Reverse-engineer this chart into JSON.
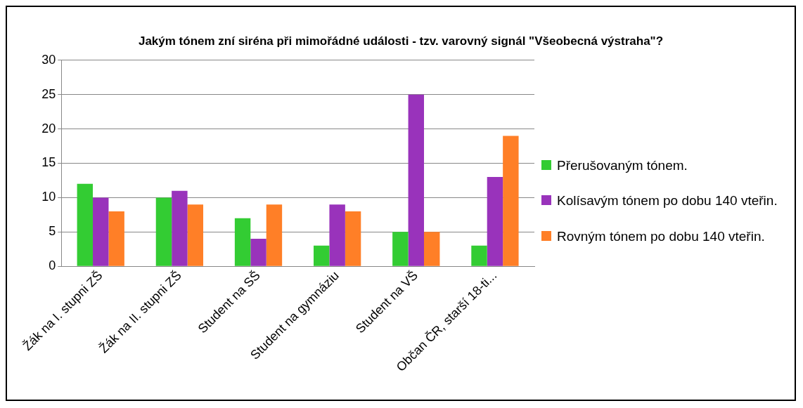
{
  "chart_data": {
    "type": "bar",
    "title": "Jakým tónem zní siréna při mimořádné události - tzv. varovný signál \"Všeobecná výstraha\"?",
    "categories": [
      "Žák na I. stupni ZŠ",
      "Žák na II. stupni ZŠ",
      "Student na SŠ",
      "Student na gymnáziu",
      "Student na VŠ",
      "Občan ČR, starší 18-ti..."
    ],
    "series": [
      {
        "name": "Přerušovaným tónem.",
        "color": "#33cc33",
        "values": [
          12,
          10,
          7,
          3,
          5,
          3
        ]
      },
      {
        "name": "Kolísavým tónem po dobu 140 vteřin.",
        "color": "#9933bb",
        "values": [
          10,
          11,
          4,
          9,
          25,
          13
        ]
      },
      {
        "name": "Rovným tónem po dobu 140 vteřin.",
        "color": "#ff7f27",
        "values": [
          8,
          9,
          9,
          8,
          5,
          19
        ]
      }
    ],
    "ylim": [
      0,
      30
    ],
    "yticks": [
      0,
      5,
      10,
      15,
      20,
      25,
      30
    ],
    "grid": "y",
    "legend": "right"
  }
}
